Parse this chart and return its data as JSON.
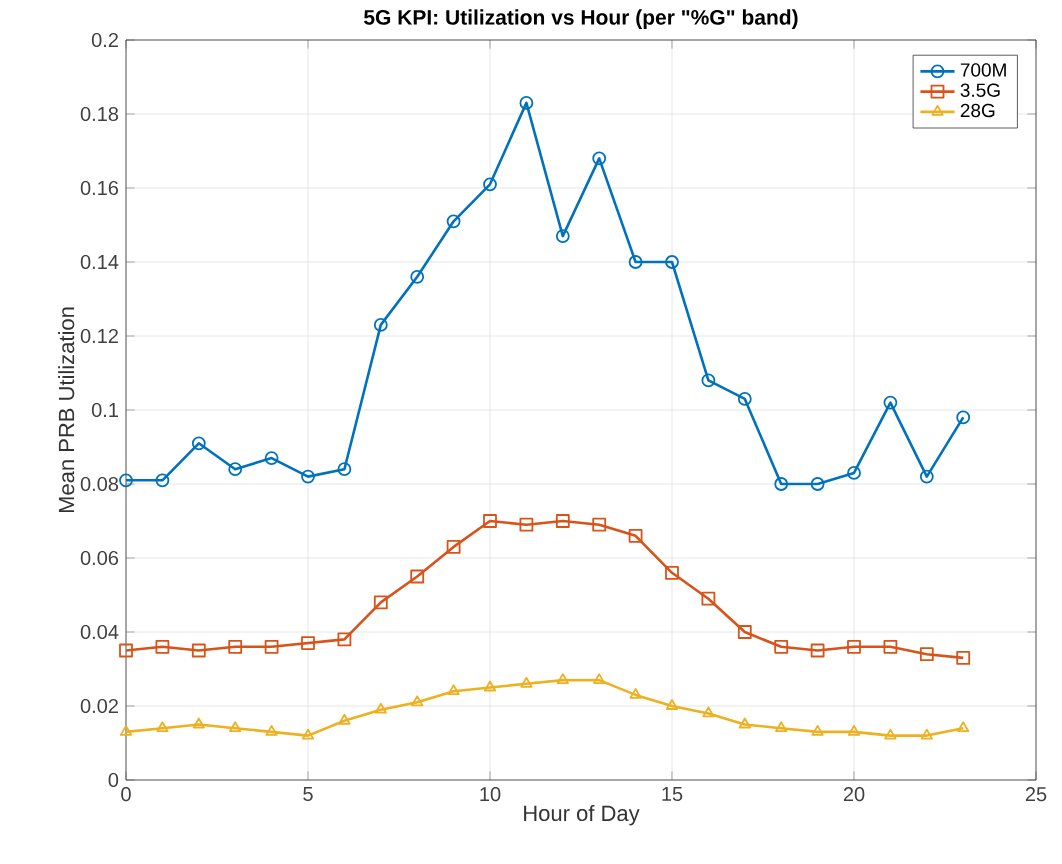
{
  "chart_data": {
    "type": "line",
    "title": "5G KPI: Utilization vs Hour (per \"%G\" band)",
    "xlabel": "Hour of Day",
    "ylabel": "Mean PRB Utilization",
    "x": [
      0,
      1,
      2,
      3,
      4,
      5,
      6,
      7,
      8,
      9,
      10,
      11,
      12,
      13,
      14,
      15,
      16,
      17,
      18,
      19,
      20,
      21,
      22,
      23
    ],
    "series": [
      {
        "name": "700M",
        "color": "#0072bd",
        "marker": "circle",
        "values": [
          0.081,
          0.081,
          0.091,
          0.084,
          0.087,
          0.082,
          0.084,
          0.123,
          0.136,
          0.151,
          0.161,
          0.183,
          0.147,
          0.168,
          0.14,
          0.14,
          0.108,
          0.103,
          0.08,
          0.08,
          0.083,
          0.102,
          0.082,
          0.098
        ]
      },
      {
        "name": "3.5G",
        "color": "#d95319",
        "marker": "square",
        "values": [
          0.035,
          0.036,
          0.035,
          0.036,
          0.036,
          0.037,
          0.038,
          0.048,
          0.055,
          0.063,
          0.07,
          0.069,
          0.07,
          0.069,
          0.066,
          0.056,
          0.049,
          0.04,
          0.036,
          0.035,
          0.036,
          0.036,
          0.034,
          0.033
        ]
      },
      {
        "name": "28G",
        "color": "#edb120",
        "marker": "triangle",
        "values": [
          0.013,
          0.014,
          0.015,
          0.014,
          0.013,
          0.012,
          0.016,
          0.019,
          0.021,
          0.024,
          0.025,
          0.026,
          0.027,
          0.027,
          0.023,
          0.02,
          0.018,
          0.015,
          0.014,
          0.013,
          0.013,
          0.012,
          0.012,
          0.014
        ]
      }
    ],
    "xlim": [
      0,
      25
    ],
    "xticks": [
      0,
      5,
      10,
      15,
      20,
      25
    ],
    "ylim": [
      0,
      0.2
    ],
    "yticks": [
      0,
      0.02,
      0.04,
      0.06,
      0.08,
      0.1,
      0.12,
      0.14,
      0.16,
      0.18,
      0.2
    ],
    "grid": true,
    "legend": "top right",
    "line_style": "solid"
  }
}
